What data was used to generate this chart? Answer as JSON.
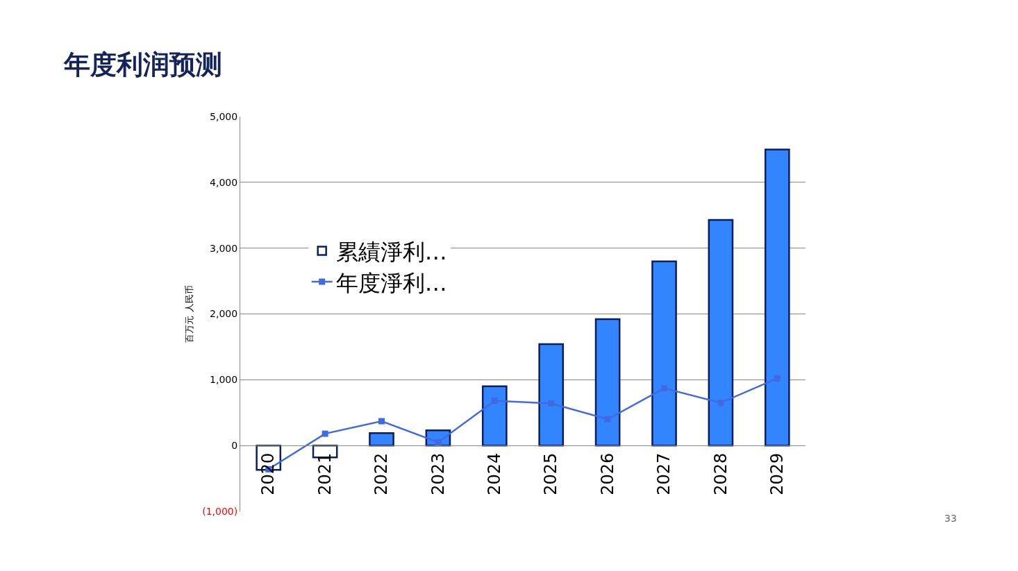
{
  "chart_data": {
    "type": "bar",
    "title": "年度利润预测",
    "ylabel": "百万元 人民币",
    "categories": [
      "2020",
      "2021",
      "2022",
      "2023",
      "2024",
      "2025",
      "2026",
      "2027",
      "2028",
      "2029"
    ],
    "series": [
      {
        "name": "累績淨利…",
        "color": "#3385ff",
        "colors": [
          "#ffffff",
          "#ffffff",
          "#3385ff",
          "#3385ff",
          "#3385ff",
          "#3385ff",
          "#3385ff",
          "#3385ff",
          "#3385ff",
          "#3385ff"
        ],
        "values": [
          -370,
          -180,
          190,
          230,
          900,
          1540,
          1920,
          2800,
          3430,
          4500
        ]
      },
      {
        "name": "年度淨利…",
        "type": "line",
        "color": "#4169e1",
        "values": [
          -360,
          180,
          370,
          50,
          680,
          640,
          400,
          870,
          650,
          1020
        ]
      }
    ],
    "ylim": [
      -1000,
      5000
    ],
    "yticks": [
      {
        "value": -1000,
        "label": "(1,000)"
      },
      {
        "value": 0,
        "label": "0"
      },
      {
        "value": 1000,
        "label": "1,000"
      },
      {
        "value": 2000,
        "label": "2,000"
      },
      {
        "value": 3000,
        "label": "3,000"
      },
      {
        "value": 4000,
        "label": "4,000"
      },
      {
        "value": 5000,
        "label": "5,000"
      }
    ],
    "grid": "y",
    "legend": "left",
    "marker": "square",
    "annotations": [
      "33"
    ]
  }
}
